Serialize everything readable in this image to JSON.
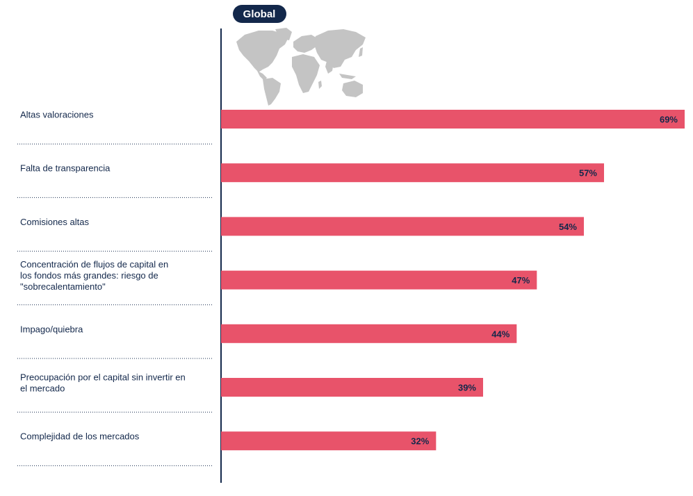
{
  "chart_data": {
    "type": "bar",
    "orientation": "horizontal",
    "title": "Global",
    "categories": [
      "Altas valoraciones",
      "Falta de transparencia",
      "Comisiones altas",
      "Concentración de flujos de capital en los fondos más grandes: riesgo de \"sobrecalentamiento\"",
      "Impago/quiebra",
      "Preocupación por el capital sin invertir en el mercado",
      "Complejidad de los mercados"
    ],
    "label_lines": [
      [
        "Altas valoraciones"
      ],
      [
        "Falta de transparencia"
      ],
      [
        "Comisiones altas"
      ],
      [
        "Concentración de flujos de capital en",
        "los fondos más grandes: riesgo de",
        "\"sobrecalentamiento\""
      ],
      [
        "Impago/quiebra"
      ],
      [
        "Preocupación por el capital sin invertir en",
        "el mercado"
      ],
      [
        "Complejidad de los mercados"
      ]
    ],
    "values": [
      69,
      57,
      54,
      47,
      44,
      39,
      32
    ],
    "value_labels": [
      "69%",
      "57%",
      "54%",
      "47%",
      "44%",
      "39%",
      "32%"
    ],
    "unit": "%",
    "xlim": [
      0,
      69
    ],
    "grid": false,
    "legend": "none"
  },
  "colors": {
    "bar": "#e8536a",
    "text": "#13284b",
    "badge": "#13284b",
    "map": "#c4c4c4"
  },
  "icons": {
    "map": "world-map-icon"
  }
}
